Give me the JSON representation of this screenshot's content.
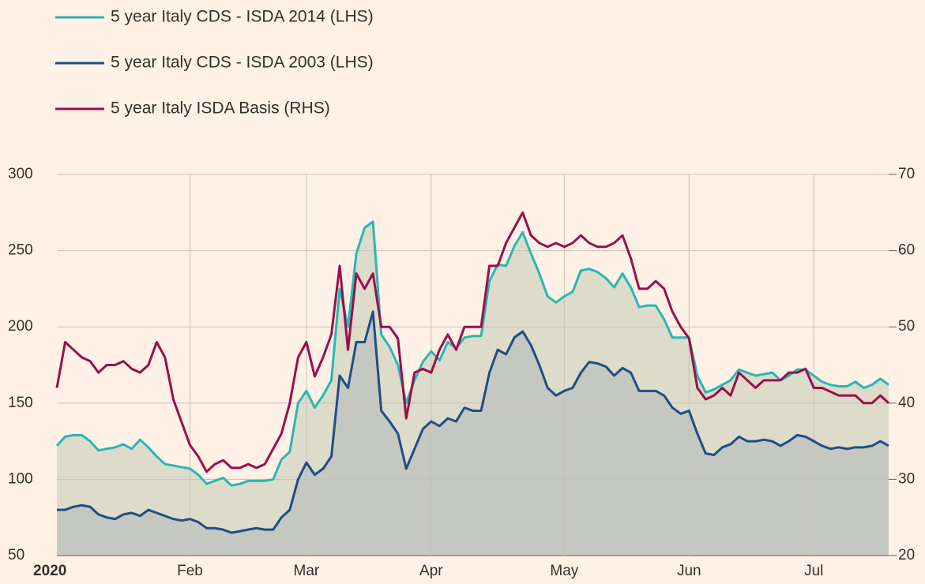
{
  "chart_data": {
    "type": "line",
    "categories": [
      "2020",
      null,
      null,
      null,
      null,
      null,
      null,
      null,
      null,
      null,
      null,
      null,
      null,
      null,
      null,
      null,
      "Feb",
      null,
      null,
      null,
      null,
      null,
      null,
      null,
      null,
      null,
      null,
      null,
      null,
      null,
      "Mar",
      null,
      null,
      null,
      null,
      null,
      null,
      null,
      null,
      null,
      null,
      null,
      null,
      null,
      null,
      "Apr",
      null,
      null,
      null,
      null,
      null,
      null,
      null,
      null,
      null,
      null,
      null,
      null,
      null,
      null,
      null,
      "May",
      null,
      null,
      null,
      null,
      null,
      null,
      null,
      null,
      null,
      null,
      null,
      null,
      null,
      null,
      "Jun",
      null,
      null,
      null,
      null,
      null,
      null,
      null,
      null,
      null,
      null,
      null,
      null,
      null,
      null,
      "Jul",
      null,
      null,
      null,
      null,
      null,
      null,
      null,
      null,
      null
    ],
    "series": [
      {
        "name": "5 year Italy CDS - ISDA 2014 (LHS)",
        "color": "#2ab7b2",
        "fill": "#dddccb",
        "values": [
          122,
          128,
          129,
          129,
          125,
          119,
          120,
          121,
          123,
          120,
          126,
          121,
          115,
          110,
          109,
          108,
          107,
          103,
          97,
          99,
          101,
          96,
          97,
          99,
          99,
          99,
          100,
          113,
          118,
          150,
          158,
          147,
          155,
          165,
          225,
          200,
          248,
          265,
          269,
          195,
          187,
          175,
          150,
          165,
          177,
          184,
          178,
          190,
          186,
          193,
          194,
          194,
          230,
          241,
          240,
          253,
          262,
          248,
          235,
          220,
          216,
          220,
          223,
          237,
          238,
          236,
          232,
          226,
          235,
          226,
          213,
          214,
          214,
          205,
          193,
          193,
          193,
          168,
          157,
          159,
          162,
          165,
          172,
          170,
          168,
          169,
          170,
          165,
          168,
          172,
          172,
          168,
          164,
          162,
          161,
          161,
          164,
          160,
          162,
          166,
          162
        ]
      },
      {
        "name": "5 year Italy CDS - ISDA 2003 (LHS)",
        "color": "#1f4e85",
        "fill": "#c4c8c0",
        "values": [
          80,
          80,
          82,
          83,
          82,
          77,
          75,
          74,
          77,
          78,
          76,
          80,
          78,
          76,
          74,
          73,
          74,
          72,
          68,
          68,
          67,
          65,
          66,
          67,
          68,
          67,
          67,
          75,
          80,
          100,
          111,
          103,
          107,
          115,
          168,
          160,
          190,
          190,
          210,
          145,
          138,
          130,
          107,
          120,
          133,
          138,
          135,
          140,
          138,
          147,
          145,
          145,
          170,
          185,
          182,
          193,
          197,
          188,
          175,
          160,
          155,
          158,
          160,
          170,
          177,
          176,
          174,
          168,
          173,
          170,
          158,
          158,
          158,
          155,
          147,
          143,
          145,
          130,
          117,
          116,
          121,
          123,
          128,
          125,
          125,
          126,
          125,
          122,
          125,
          129,
          128,
          125,
          122,
          120,
          121,
          120,
          121,
          121,
          122,
          125,
          122
        ]
      },
      {
        "name": "5 year Italy ISDA Basis (RHS)",
        "color": "#990f4b",
        "axis": "y2",
        "values": [
          42,
          48,
          47,
          46,
          45.5,
          44,
          45,
          45,
          45.5,
          44.5,
          44,
          45,
          48,
          46,
          40.5,
          37.5,
          34.5,
          33,
          31,
          32,
          32.5,
          31.5,
          31.5,
          32,
          31.5,
          32,
          34,
          36,
          40,
          46,
          48,
          43.5,
          46,
          49,
          58,
          47,
          57,
          55,
          57,
          50,
          50,
          48.5,
          38,
          44,
          44.5,
          44,
          47,
          49,
          47,
          50,
          50,
          50,
          58,
          58,
          61,
          63,
          65,
          62,
          61,
          60.5,
          61,
          60.5,
          61,
          62,
          61,
          60.5,
          60.5,
          61,
          62,
          59,
          55,
          55,
          56,
          55,
          52,
          50,
          48.5,
          42,
          40.5,
          41,
          42,
          41,
          44,
          43,
          42,
          43,
          43,
          43,
          44,
          44,
          44.5,
          42,
          42,
          41.5,
          41,
          41,
          41,
          40,
          40,
          41,
          40
        ]
      }
    ],
    "ylim": [
      50,
      300
    ],
    "yticks": [
      50,
      100,
      150,
      200,
      250,
      300
    ],
    "y2lim": [
      20,
      70
    ],
    "y2ticks": [
      20,
      30,
      40,
      50,
      60,
      70
    ],
    "grid": true
  }
}
